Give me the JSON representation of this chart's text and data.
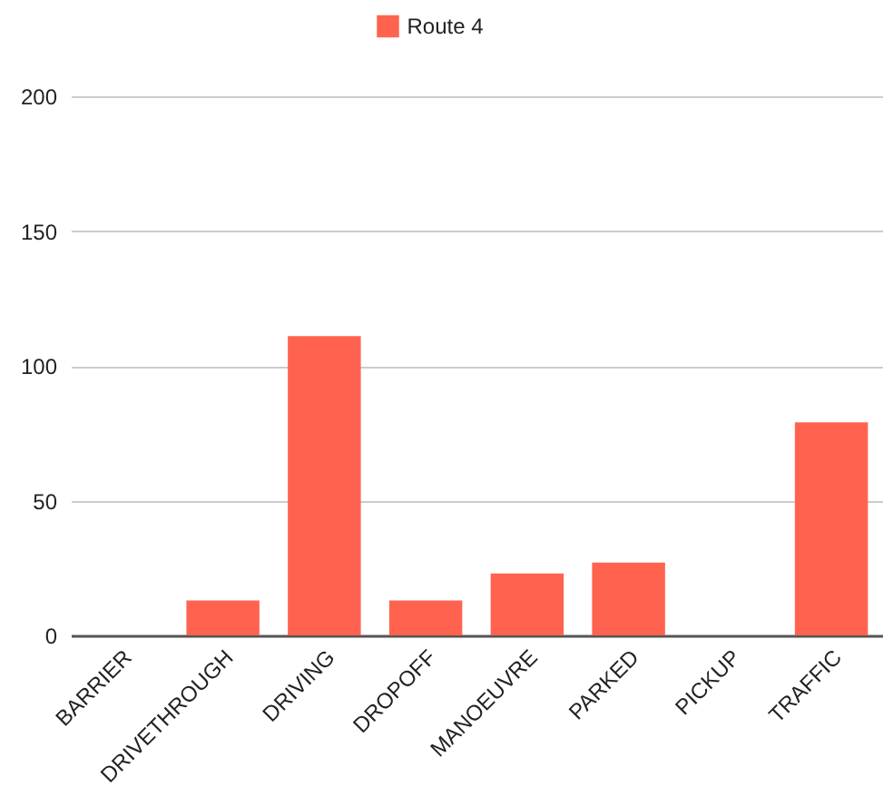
{
  "chart_data": {
    "type": "bar",
    "categories": [
      "BARRIER",
      "DRIVETHROUGH",
      "DRIVING",
      "DROPOFF",
      "MANOEUVRE",
      "PARKED",
      "PICKUP",
      "TRAFFIC"
    ],
    "series": [
      {
        "name": "Route 4",
        "color": "#ff634f",
        "values": [
          0,
          13,
          111,
          13,
          23,
          27,
          0,
          79
        ]
      }
    ],
    "ylim": [
      0,
      200
    ],
    "yticks": [
      0,
      50,
      100,
      150,
      200
    ],
    "grid": "y",
    "legend": "top"
  }
}
